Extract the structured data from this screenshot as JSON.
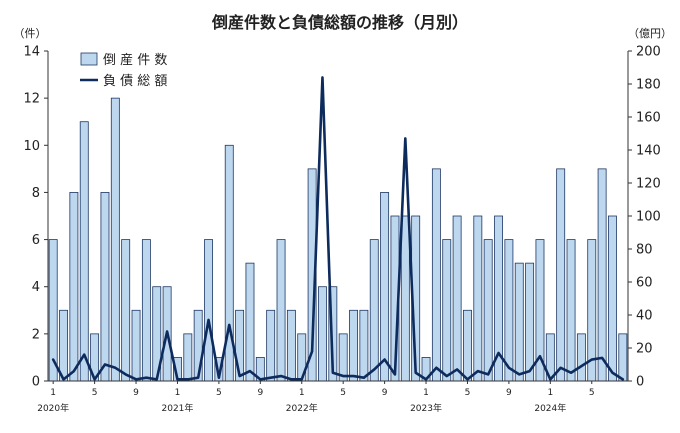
{
  "chart_data": {
    "type": "bar",
    "title": "倒産件数と負債総額の推移（月別）",
    "y_left_unit": "（件）",
    "y_right_unit": "（億円）",
    "ylim_left": [
      0,
      14
    ],
    "ylim_right": [
      0,
      200
    ],
    "yticks_left": [
      "0",
      "2",
      "4",
      "6",
      "8",
      "10",
      "12",
      "14"
    ],
    "yticks_right": [
      "0",
      "20",
      "40",
      "60",
      "80",
      "100",
      "120",
      "140",
      "160",
      "180",
      "200"
    ],
    "x_month_labels": [
      {
        "index": 0,
        "label": "1"
      },
      {
        "index": 4,
        "label": "5"
      },
      {
        "index": 8,
        "label": "9"
      },
      {
        "index": 12,
        "label": "1"
      },
      {
        "index": 16,
        "label": "5"
      },
      {
        "index": 20,
        "label": "9"
      },
      {
        "index": 24,
        "label": "1"
      },
      {
        "index": 28,
        "label": "5"
      },
      {
        "index": 32,
        "label": "9"
      },
      {
        "index": 36,
        "label": "1"
      },
      {
        "index": 40,
        "label": "5"
      },
      {
        "index": 44,
        "label": "9"
      },
      {
        "index": 48,
        "label": "1"
      },
      {
        "index": 52,
        "label": "5"
      }
    ],
    "x_year_labels": [
      {
        "index": 0,
        "label": "2020年"
      },
      {
        "index": 12,
        "label": "2021年"
      },
      {
        "index": 24,
        "label": "2022年"
      },
      {
        "index": 36,
        "label": "2023年"
      },
      {
        "index": 48,
        "label": "2024年"
      }
    ],
    "grid": false,
    "legend_position": "top-left",
    "series": [
      {
        "name": "倒 産 件 数",
        "type": "bar",
        "axis": "left",
        "color": "#bdd7ee",
        "stroke": "#1f3864",
        "values": [
          6,
          3,
          8,
          11,
          2,
          8,
          12,
          6,
          3,
          6,
          4,
          4,
          1,
          2,
          3,
          6,
          1,
          10,
          3,
          5,
          1,
          3,
          6,
          3,
          2,
          9,
          4,
          4,
          2,
          3,
          3,
          6,
          8,
          7,
          7,
          7,
          1,
          9,
          6,
          7,
          3,
          7,
          6,
          7,
          6,
          5,
          5,
          6,
          2,
          9,
          6,
          2,
          6,
          9,
          7,
          2
        ]
      },
      {
        "name": "負 債 総 額",
        "type": "line",
        "axis": "right",
        "color": "#0d2b5c",
        "values": [
          13,
          1,
          6,
          16,
          1,
          10,
          8,
          4,
          1,
          2,
          1,
          30,
          1,
          1,
          2,
          37,
          2,
          34,
          3,
          6,
          1,
          2,
          3,
          1,
          1,
          18,
          184,
          5,
          3,
          3,
          2,
          7,
          13,
          4,
          147,
          5,
          1,
          8,
          3,
          7,
          1,
          6,
          4,
          17,
          8,
          4,
          6,
          15,
          1,
          8,
          5,
          9,
          13,
          14,
          5,
          1
        ]
      }
    ]
  }
}
